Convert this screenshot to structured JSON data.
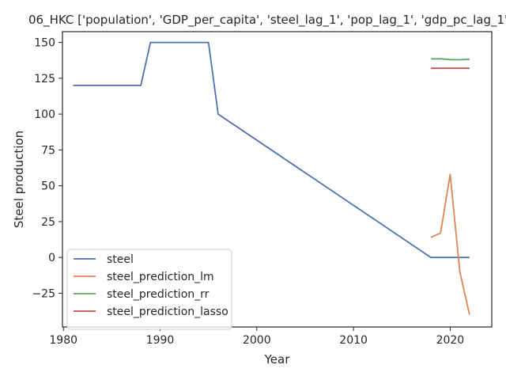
{
  "chart_data": {
    "type": "line",
    "title": "06_HKC ['population', 'GDP_per_capita', 'steel_lag_1', 'pop_lag_1', 'gdp_pc_lag_1'",
    "xlabel": "Year",
    "ylabel": "Steel production",
    "xlim": [
      1979.9,
      2024.3
    ],
    "ylim": [
      -48.5,
      157.5
    ],
    "xticks": [
      1980,
      1990,
      2000,
      2010,
      2020
    ],
    "yticks": [
      -25,
      0,
      25,
      50,
      75,
      100,
      125,
      150
    ],
    "xtick_labels": [
      "1980",
      "1990",
      "2000",
      "2010",
      "2020"
    ],
    "ytick_labels": [
      "−25",
      "0",
      "25",
      "50",
      "75",
      "100",
      "125",
      "150"
    ],
    "grid": false,
    "legend_position": "lower-left",
    "series": [
      {
        "name": "steel",
        "color": "#4c72b0",
        "x": [
          1981,
          1988,
          1989,
          1995,
          1996,
          2018,
          2019,
          2020,
          2021,
          2022
        ],
        "y": [
          120,
          120,
          150,
          150,
          100,
          0,
          0,
          0,
          0,
          0
        ]
      },
      {
        "name": "steel_prediction_lm",
        "color": "#dd8452",
        "x": [
          2018,
          2019,
          2020,
          2021,
          2022
        ],
        "y": [
          14,
          17,
          58,
          -10,
          -40
        ]
      },
      {
        "name": "steel_prediction_rr",
        "color": "#55a868",
        "x": [
          2018,
          2019,
          2020,
          2021,
          2022
        ],
        "y": [
          138.5,
          138.6,
          138.0,
          137.9,
          138.3
        ]
      },
      {
        "name": "steel_prediction_lasso",
        "color": "#c44e52",
        "x": [
          2018,
          2019,
          2020,
          2021,
          2022
        ],
        "y": [
          132,
          132,
          132,
          132,
          132
        ]
      }
    ]
  }
}
